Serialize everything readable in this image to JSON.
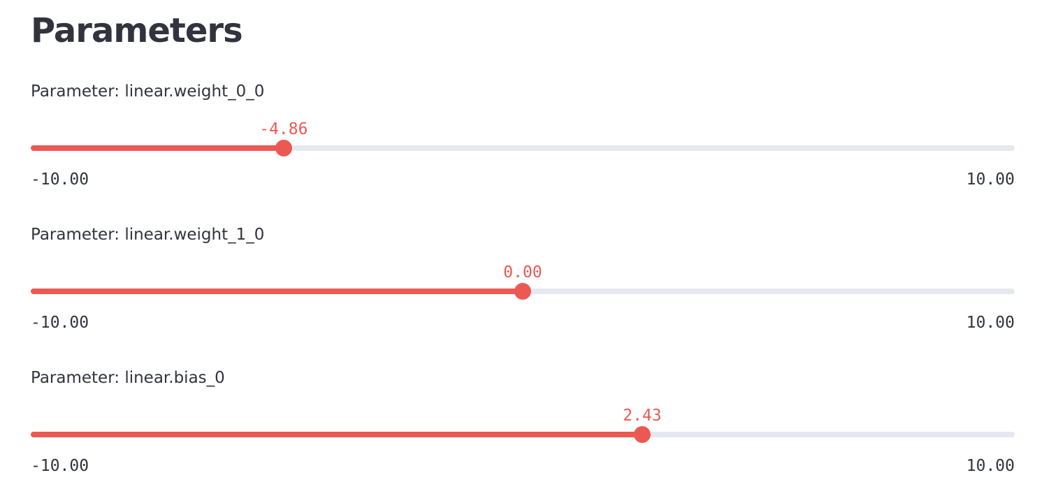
{
  "page": {
    "title": "Parameters"
  },
  "colors": {
    "accent": "#ec5953",
    "track": "#e6e8ef",
    "text": "#31333f"
  },
  "sliders": [
    {
      "label": "Parameter: linear.weight_0_0",
      "value": -4.86,
      "value_text": "-4.86",
      "min": -10,
      "max": 10,
      "min_text": "-10.00",
      "max_text": "10.00"
    },
    {
      "label": "Parameter: linear.weight_1_0",
      "value": 0.0,
      "value_text": "0.00",
      "min": -10,
      "max": 10,
      "min_text": "-10.00",
      "max_text": "10.00"
    },
    {
      "label": "Parameter: linear.bias_0",
      "value": 2.43,
      "value_text": "2.43",
      "min": -10,
      "max": 10,
      "min_text": "-10.00",
      "max_text": "10.00"
    }
  ]
}
